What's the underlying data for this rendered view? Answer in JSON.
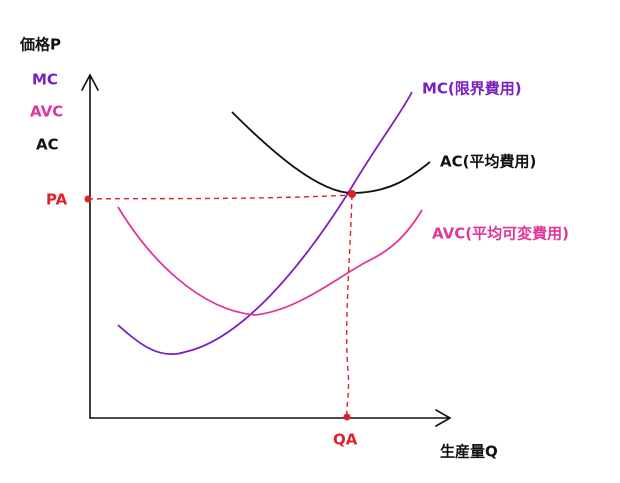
{
  "axes": {
    "y_label": "価格P",
    "x_label": "生産量Q"
  },
  "legend": [
    "MC",
    "AVC",
    "AC"
  ],
  "curves": [
    {
      "label": "MC(限界費用)"
    },
    {
      "label": "AC(平均費用)"
    },
    {
      "label": "AVC(平均可変費用)"
    }
  ],
  "points": {
    "price": "PA",
    "quantity": "QA"
  }
}
